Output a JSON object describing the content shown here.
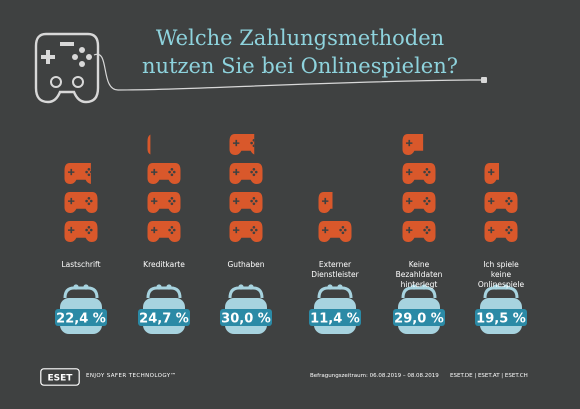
{
  "title": {
    "line1": "Welche Zahlungsmethoden",
    "line2": "nutzen Sie bei Onlinespielen?"
  },
  "chart_data": {
    "type": "bar",
    "categories": [
      "Lastschrift",
      "Kreditkarte",
      "Guthaben",
      "Externer Dienstleister",
      "Keine Bezahldaten hinterlegt",
      "Ich spiele keine Onlinespiele"
    ],
    "category_lines": [
      [
        "Lastschrift"
      ],
      [
        "Kreditkarte"
      ],
      [
        "Guthaben"
      ],
      [
        "Externer",
        "Dienstleister"
      ],
      [
        "Keine",
        "Bezahldaten",
        "hinterlegt"
      ],
      [
        "Ich spiele",
        "keine",
        "Onlinespiele"
      ]
    ],
    "values": [
      22.4,
      24.7,
      30.0,
      11.4,
      29.0,
      19.5
    ],
    "value_labels": [
      "22,4 %",
      "24,7 %",
      "30,0 %",
      "11,4 %",
      "29,0 %",
      "19,5 %"
    ],
    "unit": "%",
    "icon_unit_percent": 8,
    "icon": "gamepad-icon",
    "colors": {
      "background": "#3f4141",
      "gamepad": "#d9582b",
      "wallet": "#a7d3df",
      "badge": "#2b8aa6",
      "title": "#8ed3dd"
    }
  },
  "footer": {
    "logo": "ESET",
    "tagline": "ENJOY SAFER TECHNOLOGY™",
    "survey_period": "Befragungszeitraum: 06.08.2019 – 08.08.2019",
    "sites": "ESET.DE  |  ESET.AT  |  ESET.CH"
  }
}
